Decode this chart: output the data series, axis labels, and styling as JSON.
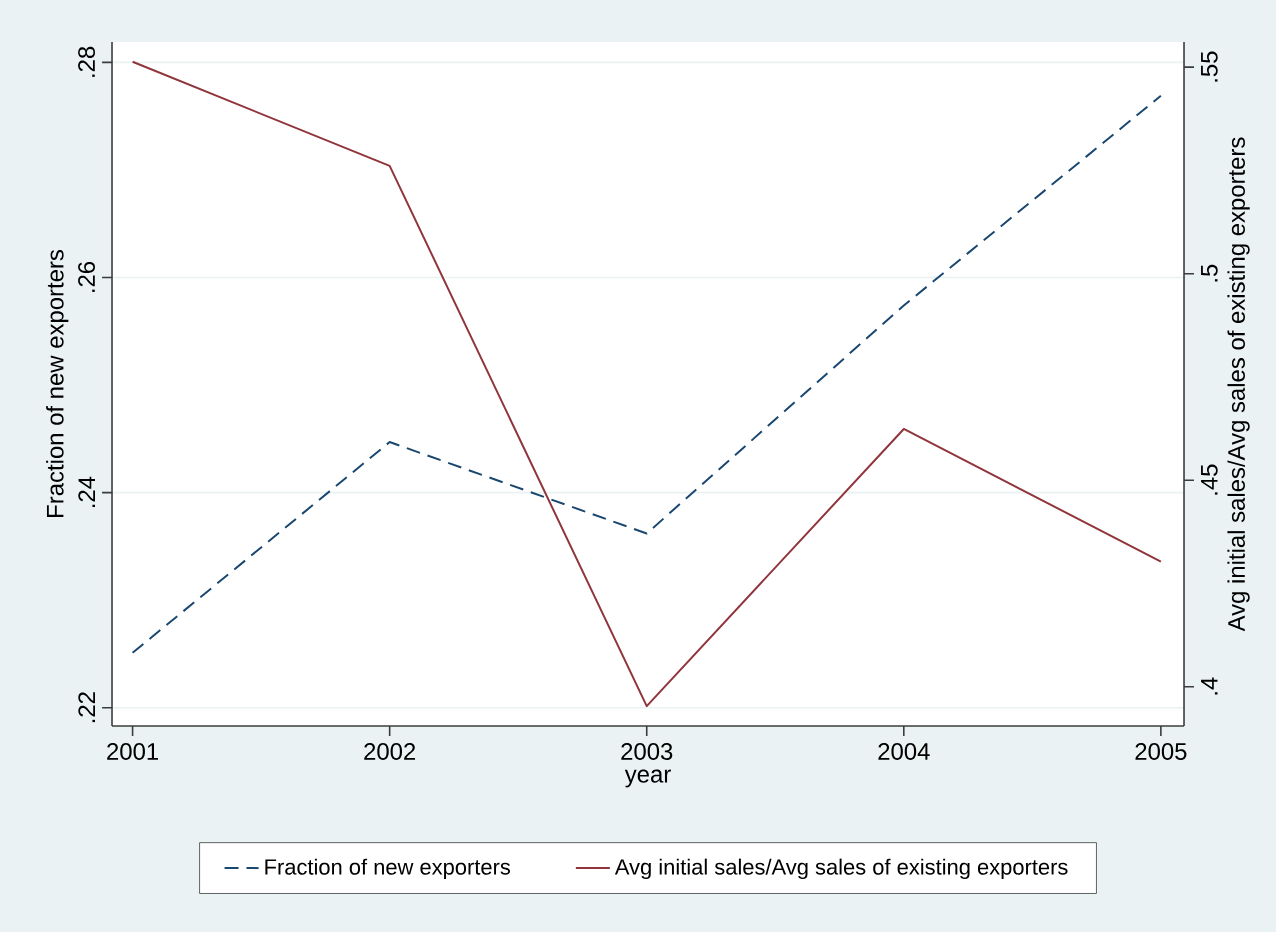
{
  "chart_data": {
    "type": "line",
    "xlabel": "year",
    "ylabel": "Fraction of new exporters",
    "y2label": "Avg initial sales/Avg sales of existing exporters",
    "x": [
      2001,
      2002,
      2003,
      2004,
      2005
    ],
    "xlim": [
      2000.92,
      2005.09
    ],
    "xticks": [
      2001,
      2002,
      2003,
      2004,
      2005
    ],
    "ylim": [
      0.2183,
      0.2819
    ],
    "yticks": [
      {
        "value": 0.22,
        "label": ".22"
      },
      {
        "value": 0.24,
        "label": ".24"
      },
      {
        "value": 0.26,
        "label": ".26"
      },
      {
        "value": 0.28,
        "label": ".28"
      }
    ],
    "y2lim": [
      0.3905,
      0.5561
    ],
    "y2ticks": [
      {
        "value": 0.4,
        "label": ".4"
      },
      {
        "value": 0.45,
        "label": ".45"
      },
      {
        "value": 0.5,
        "label": ".5"
      },
      {
        "value": 0.55,
        "label": ".55"
      }
    ],
    "grid": "y",
    "legend": "bottom",
    "series": [
      {
        "name": "Fraction of new exporters",
        "color": "#1a476f",
        "line_style": "dashed",
        "values": [
          0.2251,
          0.2447,
          0.2362,
          0.2574,
          0.2769
        ]
      },
      {
        "name": "Avg initial sales/Avg sales of existing exporters",
        "color": "#90353b",
        "line_style": "solid",
        "axis": "y2",
        "values": [
          0.5513,
          0.5261,
          0.3953,
          0.4624,
          0.4303
        ]
      }
    ]
  }
}
